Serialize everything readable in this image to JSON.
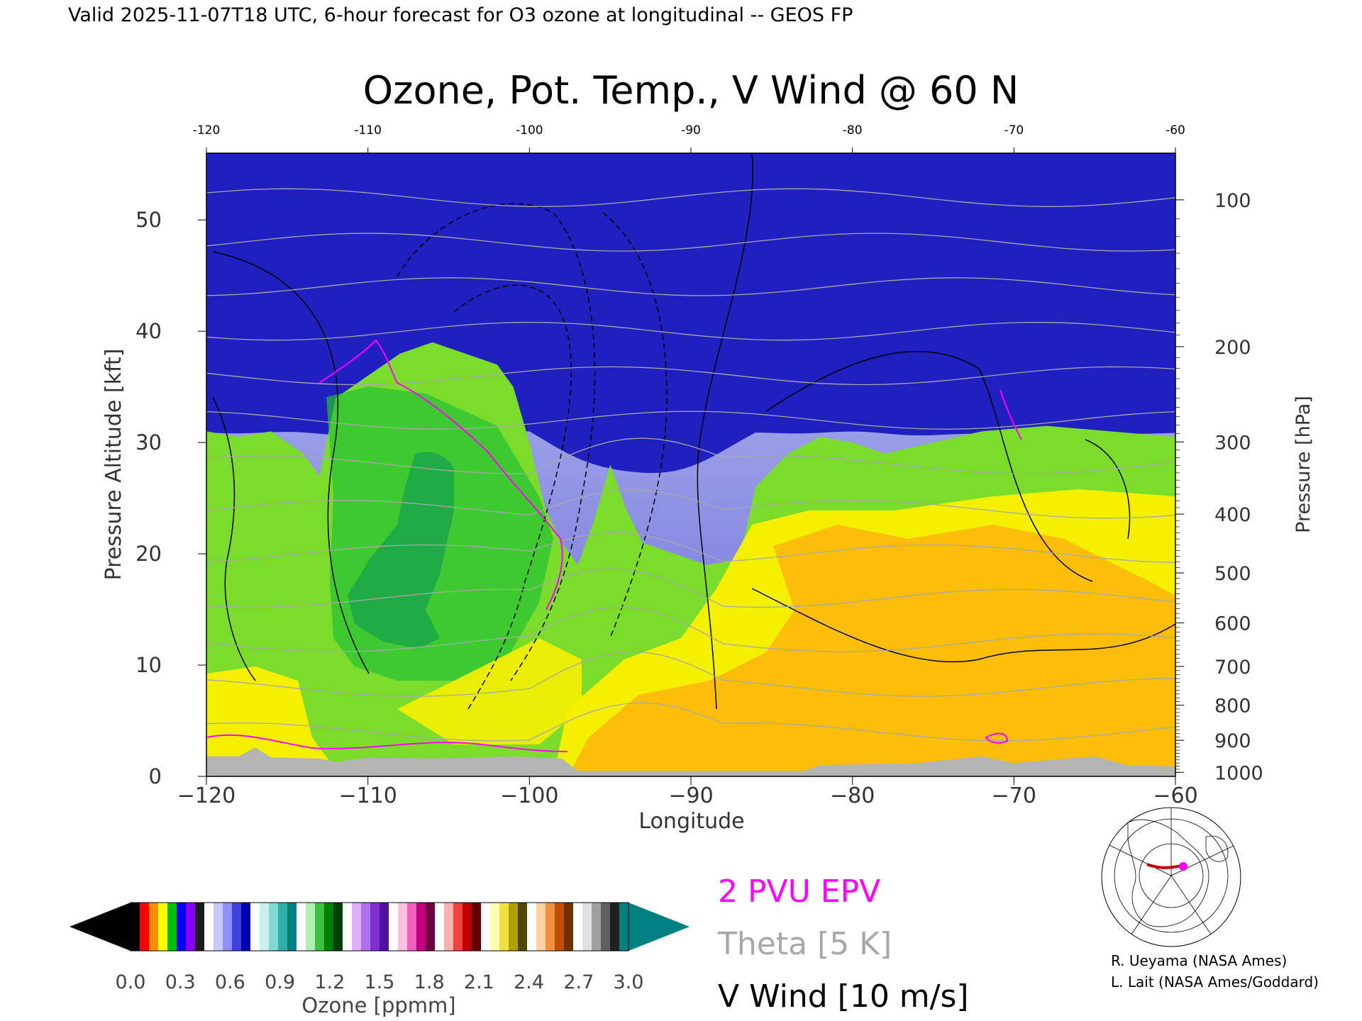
{
  "header": {
    "valid_line": "Valid 2025-11-07T18 UTC, 6-hour forecast for O3 ozone at longitudinal -- GEOS FP"
  },
  "chart_data": {
    "type": "heatmap",
    "title": "Ozone, Pot. Temp., V Wind @ 60 N",
    "xlabel": "Longitude",
    "ylabel_left": "Pressure Altitude [kft]",
    "ylabel_right": "Pressure [hPa]",
    "xlim": [
      -120,
      -60
    ],
    "ylim": [
      0,
      56
    ],
    "x_ticks": [
      -120,
      -110,
      -100,
      -90,
      -80,
      -70,
      -60
    ],
    "x_tick_labels_bottom": [
      "−120",
      "−110",
      "−100",
      "−90",
      "−80",
      "−70",
      "−60"
    ],
    "x_tick_labels_top": [
      "-120",
      "-110",
      "-100",
      "-90",
      "-80",
      "-70",
      "-60"
    ],
    "y_ticks": [
      0,
      10,
      20,
      30,
      40,
      50
    ],
    "pressure_ticks": [
      {
        "hpa": 100,
        "label": "100"
      },
      {
        "hpa": 200,
        "label": "200"
      },
      {
        "hpa": 300,
        "label": "300"
      },
      {
        "hpa": 400,
        "label": "400"
      },
      {
        "hpa": 500,
        "label": "500"
      },
      {
        "hpa": 600,
        "label": "600"
      },
      {
        "hpa": 700,
        "label": "700"
      },
      {
        "hpa": 800,
        "label": "800"
      },
      {
        "hpa": 900,
        "label": "900"
      },
      {
        "hpa": 1000,
        "label": "1000"
      }
    ],
    "tropopause_kft": [
      [
        -120,
        31
      ],
      [
        -118,
        30.5
      ],
      [
        -116,
        31
      ],
      [
        -114,
        29
      ],
      [
        -113,
        27
      ],
      [
        -112,
        34
      ],
      [
        -110,
        36
      ],
      [
        -108,
        38
      ],
      [
        -106,
        39
      ],
      [
        -104,
        38
      ],
      [
        -102,
        37
      ],
      [
        -101,
        35
      ],
      [
        -100,
        30
      ],
      [
        -99,
        24
      ],
      [
        -98,
        21
      ],
      [
        -97,
        19
      ],
      [
        -96,
        23
      ],
      [
        -95,
        28
      ],
      [
        -94,
        24
      ],
      [
        -93,
        21
      ],
      [
        -91,
        20
      ],
      [
        -89,
        19
      ],
      [
        -87,
        19.5
      ],
      [
        -86,
        26
      ],
      [
        -84,
        29
      ],
      [
        -82,
        30.5
      ],
      [
        -80,
        30
      ],
      [
        -78,
        29
      ],
      [
        -75,
        30
      ],
      [
        -72,
        31
      ],
      [
        -68,
        31.5
      ],
      [
        -64,
        31
      ],
      [
        -60,
        30.5
      ]
    ],
    "colorbar": {
      "label": "Ozone [ppmm]",
      "min": 0.0,
      "max": 3.0,
      "tick_labels": [
        "0.0",
        "0.3",
        "0.6",
        "0.9",
        "1.2",
        "1.5",
        "1.8",
        "2.1",
        "2.4",
        "2.7",
        "3.0"
      ],
      "colors": [
        "#000000",
        "#ff0000",
        "#ff8c00",
        "#ffff00",
        "#00c000",
        "#0000ff",
        "#8a00ff",
        "#1a1a1a",
        "#ffffff",
        "#c8c8ff",
        "#9090ff",
        "#4040e0",
        "#0000b0",
        "#ffffff",
        "#c8f0ec",
        "#80d8d0",
        "#30b0a8",
        "#008080",
        "#ffffff",
        "#b0f0b0",
        "#40c040",
        "#008000",
        "#004000",
        "#ffffff",
        "#e0b0ff",
        "#b070f0",
        "#8030d0",
        "#5010a0",
        "#ffffff",
        "#ffc0e0",
        "#f060c0",
        "#c00080",
        "#700040",
        "#ffffff",
        "#ffb0b0",
        "#f04040",
        "#c00000",
        "#600000",
        "#ffffff",
        "#ffffb0",
        "#f0e040",
        "#b0a000",
        "#504800",
        "#ffffff",
        "#ffd0a0",
        "#f09040",
        "#c05000",
        "#703000",
        "#ffffff",
        "#e0e0e0",
        "#a0a0a0",
        "#606060",
        "#202020",
        "#008080"
      ]
    },
    "legend": [
      {
        "label": "2 PVU EPV",
        "color": "#ff00ff"
      },
      {
        "label": "Theta [5 K]",
        "color": "#a8a8a8"
      },
      {
        "label": "V Wind [10 m/s]",
        "color": "#000000"
      }
    ],
    "grid": false
  },
  "locator_map": {
    "section_color": "#c00000",
    "marker_color": "#ff00ff"
  },
  "credits": {
    "line1": "R. Ueyama (NASA Ames)",
    "line2": "L. Lait (NASA Ames/Goddard)"
  }
}
